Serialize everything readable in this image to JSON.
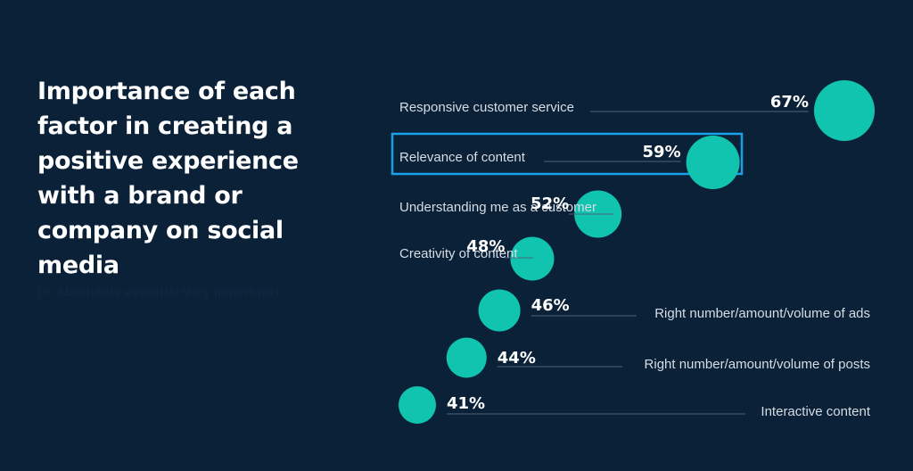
{
  "title": "Importance of each factor in creating a positive experience with a brand or company on social media",
  "subtitle": "(% Absolutely essential/Very important)",
  "colors": {
    "background": "#0a2138",
    "dot": "#10c4b0",
    "highlight": "#1aa0e6",
    "text": "#d6dde5",
    "value": "#ffffff",
    "rule": "#4e6478"
  },
  "chart_data": {
    "type": "scatter",
    "title": "Importance of each factor in creating a positive experience with a brand or company on social media",
    "subtitle": "(% Absolutely essential/Very important)",
    "unit": "%",
    "categories": [
      "Responsive customer service",
      "Relevance of content",
      "Understanding me as a customer",
      "Creativity of content",
      "Right number/amount/volume of ads",
      "Right number/amount/volume of posts",
      "Interactive content"
    ],
    "values": [
      67,
      59,
      52,
      48,
      46,
      44,
      41
    ],
    "value_labels": [
      "67%",
      "59%",
      "52%",
      "48%",
      "46%",
      "44%",
      "41%"
    ],
    "highlighted": "Relevance of content",
    "encoding": "bubble size and horizontal position scale with value",
    "legend": "none",
    "grid": false
  }
}
